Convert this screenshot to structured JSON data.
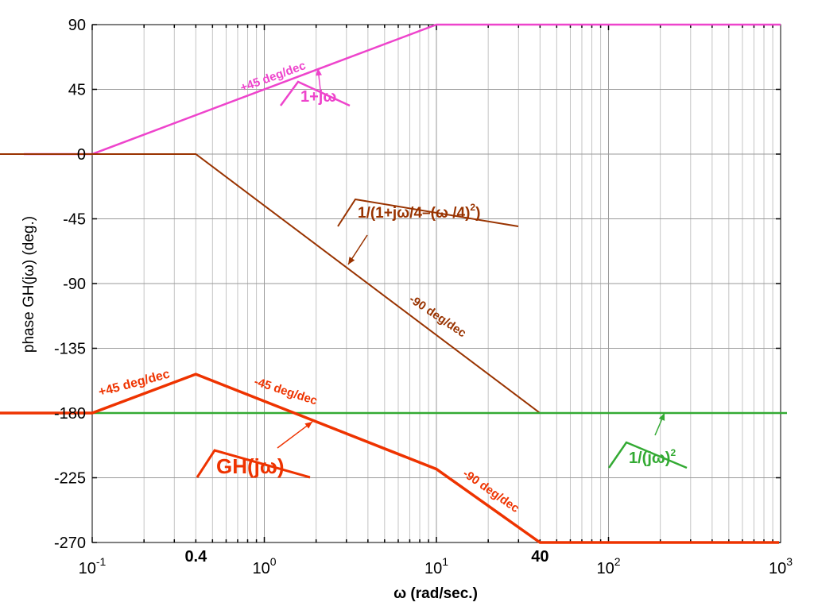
{
  "chart_data": {
    "type": "line",
    "title": "",
    "xlabel": "ω (rad/sec.)",
    "ylabel": "phase GH(jω) (deg.)",
    "x_scale": "log",
    "xlim": [
      0.1,
      1000
    ],
    "ylim": [
      -270,
      90
    ],
    "grid": true,
    "x_ticks": [
      {
        "value": 0.1,
        "base": "10",
        "exp": "-1"
      },
      {
        "value": 1,
        "base": "10",
        "exp": "0"
      },
      {
        "value": 10,
        "base": "10",
        "exp": "1"
      },
      {
        "value": 100,
        "base": "10",
        "exp": "2"
      },
      {
        "value": 1000,
        "base": "10",
        "exp": "3"
      }
    ],
    "extra_x_ticks": [
      {
        "value": 0.4,
        "label": "0.4",
        "color": "#993300"
      },
      {
        "value": 40,
        "label": "40",
        "color": "#993300"
      }
    ],
    "y_ticks": [
      {
        "value": 90,
        "label": "90"
      },
      {
        "value": 45,
        "label": "45"
      },
      {
        "value": 0,
        "label": "0"
      },
      {
        "value": -45,
        "label": "-45"
      },
      {
        "value": -90,
        "label": "-90"
      },
      {
        "value": -135,
        "label": "-135"
      },
      {
        "value": -180,
        "label": "-180"
      },
      {
        "value": -225,
        "label": "-225"
      },
      {
        "value": -270,
        "label": "-270"
      }
    ],
    "series": [
      {
        "key": "zero",
        "color": "#ee44cc",
        "width": 2.5,
        "x": [
          0.1,
          0.1,
          10,
          1000
        ],
        "y": [
          0,
          0,
          90,
          90
        ]
      },
      {
        "key": "poles2",
        "color": "#993300",
        "width": 2,
        "x": [
          0.1,
          0.4,
          40,
          1000
        ],
        "y": [
          0,
          0,
          -180,
          -180
        ]
      },
      {
        "key": "integrator",
        "color": "#33aa33",
        "width": 2.5,
        "x": [
          0.1,
          1000
        ],
        "y": [
          -180,
          -180
        ]
      },
      {
        "key": "total",
        "color": "#ee3300",
        "width": 3.5,
        "x": [
          0.1,
          0.1,
          0.4,
          10,
          40,
          1000
        ],
        "y": [
          -180,
          -180,
          -153,
          -219,
          -270,
          -270
        ]
      }
    ],
    "annotations": [
      {
        "key": "zero-label",
        "text": "1+jω",
        "color": "#ee44cc"
      },
      {
        "key": "poles2-label",
        "text": "1/(1+jω/4–(ω /4)2)",
        "color": "#993300"
      },
      {
        "key": "integrator-label",
        "text": "1/(jω)2",
        "color": "#33aa33"
      },
      {
        "key": "total-label",
        "text": "GH(jω)",
        "color": "#ee3300"
      },
      {
        "key": "slope-zero",
        "text": "+45 deg/dec",
        "color": "#ee44cc"
      },
      {
        "key": "slope-poles2",
        "text": "-90 deg/dec",
        "color": "#993300"
      },
      {
        "key": "slope-total-1",
        "text": "+45 deg/dec",
        "color": "#ee3300"
      },
      {
        "key": "slope-total-2",
        "text": "-45 deg/dec",
        "color": "#ee3300"
      },
      {
        "key": "slope-total-3",
        "text": "-90 deg/dec",
        "color": "#ee3300"
      }
    ]
  }
}
